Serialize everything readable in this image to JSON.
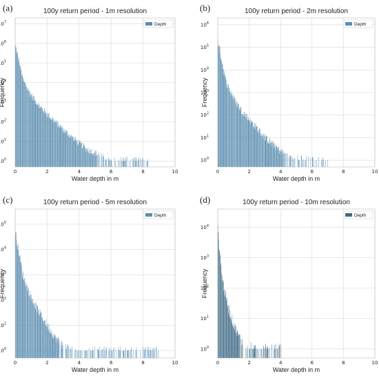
{
  "chart_data": [
    {
      "type": "bar",
      "panel": "(a)",
      "title": "100y return period - 1m resolution",
      "xlabel": "Water depth in m",
      "ylabel": "Frequency",
      "xlim": [
        0,
        10
      ],
      "xticks": [
        0,
        2,
        4,
        6,
        8,
        10
      ],
      "yscale": "log",
      "ylim_exp": [
        -0.3,
        7.3
      ],
      "yticks_exp": [
        0,
        1,
        2,
        3,
        4,
        5,
        6,
        7
      ],
      "grid": true,
      "legend": {
        "position": "top-right",
        "entries": [
          "Depth"
        ]
      },
      "color": "#5b8db0",
      "series": [
        {
          "name": "Depth",
          "x": [
            0,
            0.5,
            1,
            1.5,
            2,
            2.5,
            3,
            3.5,
            4,
            4.5,
            5,
            5.5,
            6,
            7,
            8.4
          ],
          "log10_freq": [
            5.9,
            4.1,
            3.35,
            2.8,
            2.4,
            2.0,
            1.6,
            1.25,
            0.9,
            0.6,
            0.4,
            0.2,
            0.08,
            0.05,
            0.0
          ]
        }
      ]
    },
    {
      "type": "bar",
      "panel": "(b)",
      "title": "100y return period - 2m resolution",
      "xlabel": "Water depth in m",
      "ylabel": "Frequency",
      "xlim": [
        0,
        10
      ],
      "xticks": [
        0,
        2,
        4,
        6,
        8,
        10
      ],
      "yscale": "log",
      "ylim_exp": [
        -0.3,
        6.3
      ],
      "yticks_exp": [
        0,
        1,
        2,
        3,
        4,
        5,
        6
      ],
      "grid": true,
      "legend": {
        "position": "top-right",
        "entries": [
          "Depth"
        ]
      },
      "color": "#5b8db0",
      "series": [
        {
          "name": "Depth",
          "x": [
            0,
            0.5,
            1,
            1.5,
            2,
            2.5,
            3,
            3.5,
            4,
            4.5,
            5,
            5.5,
            6,
            7
          ],
          "log10_freq": [
            5.3,
            3.5,
            2.75,
            2.2,
            1.8,
            1.4,
            1.0,
            0.7,
            0.4,
            0.2,
            0.08,
            0.03,
            0.0,
            0.0
          ]
        }
      ]
    },
    {
      "type": "bar",
      "panel": "(c)",
      "title": "100y return period - 5m resolution",
      "xlabel": "Water depth in m",
      "ylabel": "Frequency",
      "xlim": [
        0,
        10
      ],
      "xticks": [
        0,
        2,
        4,
        6,
        8,
        10
      ],
      "yscale": "log",
      "ylim_exp": [
        -0.3,
        5.6
      ],
      "yticks_exp": [
        0,
        1,
        2,
        3,
        4,
        5
      ],
      "grid": true,
      "legend": {
        "position": "top-right",
        "entries": [
          "Depth"
        ]
      },
      "color": "#5b8db0",
      "series": [
        {
          "name": "Depth",
          "x": [
            0,
            0.5,
            1,
            1.5,
            2,
            2.5,
            3,
            3.5,
            4,
            5,
            9
          ],
          "log10_freq": [
            4.7,
            2.9,
            2.1,
            1.5,
            1.0,
            0.5,
            0.2,
            0.05,
            0.0,
            0.0,
            0.0
          ]
        }
      ]
    },
    {
      "type": "bar",
      "panel": "(d)",
      "title": "100y return period - 10m resolution",
      "xlabel": "Water depth in m",
      "ylabel": "Frequency",
      "xlim": [
        0,
        10
      ],
      "xticks": [
        0,
        2,
        4,
        6,
        8,
        10
      ],
      "yscale": "log",
      "ylim_exp": [
        -0.3,
        4.6
      ],
      "yticks_exp": [
        0,
        1,
        2,
        3,
        4
      ],
      "grid": true,
      "legend": {
        "position": "top-right",
        "entries": [
          "Depth"
        ]
      },
      "color": "#3f6a86",
      "series": [
        {
          "name": "Depth",
          "x": [
            0,
            0.25,
            0.5,
            0.75,
            1,
            1.25,
            1.5,
            2,
            2.5,
            3,
            3.5,
            4
          ],
          "log10_freq": [
            3.9,
            2.4,
            1.7,
            1.2,
            0.8,
            0.5,
            0.25,
            0.05,
            0.0,
            0.0,
            0.0,
            0.0
          ]
        }
      ]
    }
  ]
}
